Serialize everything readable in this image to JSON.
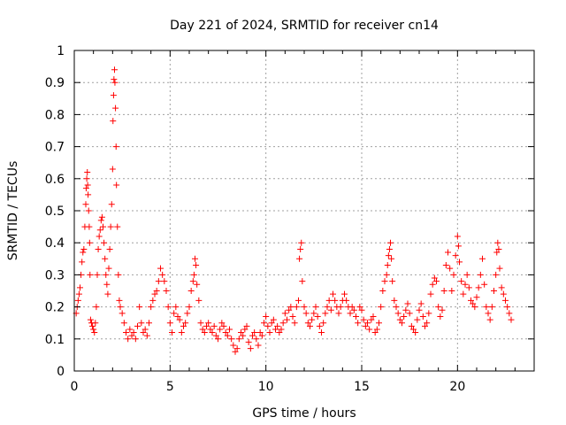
{
  "chart_data": {
    "type": "scatter",
    "title": "Day 221 of 2024, SRMTID for receiver cn14",
    "xlabel": "GPS time / hours",
    "ylabel": "SRMTID / TECUs",
    "xlim": [
      0,
      24
    ],
    "ylim": [
      0,
      1
    ],
    "xticks": [
      0,
      5,
      10,
      15,
      20
    ],
    "xtick_labels": [
      "0",
      "5",
      "10",
      "15",
      "20"
    ],
    "yticks": [
      0,
      0.1,
      0.2,
      0.3,
      0.4,
      0.5,
      0.6,
      0.7,
      0.8,
      0.9,
      1
    ],
    "ytick_labels": [
      "0",
      "0.1",
      "0.2",
      "0.3",
      "0.4",
      "0.5",
      "0.6",
      "0.7",
      "0.8",
      "0.9",
      "1"
    ],
    "grid": true,
    "marker": "+",
    "color": "#ff0000",
    "series": [
      {
        "name": "SRMTID",
        "points": [
          [
            0.1,
            0.18
          ],
          [
            0.15,
            0.2
          ],
          [
            0.2,
            0.22
          ],
          [
            0.25,
            0.24
          ],
          [
            0.3,
            0.26
          ],
          [
            0.35,
            0.3
          ],
          [
            0.4,
            0.34
          ],
          [
            0.45,
            0.37
          ],
          [
            0.5,
            0.38
          ],
          [
            0.55,
            0.45
          ],
          [
            0.6,
            0.52
          ],
          [
            0.62,
            0.57
          ],
          [
            0.65,
            0.6
          ],
          [
            0.68,
            0.62
          ],
          [
            0.7,
            0.58
          ],
          [
            0.72,
            0.55
          ],
          [
            0.75,
            0.5
          ],
          [
            0.78,
            0.45
          ],
          [
            0.8,
            0.4
          ],
          [
            0.82,
            0.3
          ],
          [
            0.85,
            0.16
          ],
          [
            0.9,
            0.15
          ],
          [
            0.95,
            0.14
          ],
          [
            1.0,
            0.13
          ],
          [
            1.05,
            0.12
          ],
          [
            1.1,
            0.15
          ],
          [
            1.15,
            0.2
          ],
          [
            1.2,
            0.3
          ],
          [
            1.25,
            0.38
          ],
          [
            1.3,
            0.42
          ],
          [
            1.35,
            0.44
          ],
          [
            1.4,
            0.47
          ],
          [
            1.45,
            0.48
          ],
          [
            1.5,
            0.45
          ],
          [
            1.55,
            0.4
          ],
          [
            1.6,
            0.35
          ],
          [
            1.65,
            0.3
          ],
          [
            1.7,
            0.27
          ],
          [
            1.75,
            0.24
          ],
          [
            1.8,
            0.32
          ],
          [
            1.85,
            0.38
          ],
          [
            1.9,
            0.45
          ],
          [
            1.95,
            0.52
          ],
          [
            2.0,
            0.63
          ],
          [
            2.02,
            0.78
          ],
          [
            2.05,
            0.86
          ],
          [
            2.07,
            0.91
          ],
          [
            2.1,
            0.94
          ],
          [
            2.12,
            0.9
          ],
          [
            2.15,
            0.82
          ],
          [
            2.18,
            0.7
          ],
          [
            2.2,
            0.58
          ],
          [
            2.25,
            0.45
          ],
          [
            2.3,
            0.3
          ],
          [
            2.35,
            0.22
          ],
          [
            2.4,
            0.2
          ],
          [
            2.5,
            0.18
          ],
          [
            2.6,
            0.15
          ],
          [
            2.7,
            0.12
          ],
          [
            2.8,
            0.1
          ],
          [
            2.9,
            0.13
          ],
          [
            3.0,
            0.11
          ],
          [
            3.1,
            0.12
          ],
          [
            3.2,
            0.1
          ],
          [
            3.3,
            0.14
          ],
          [
            3.4,
            0.2
          ],
          [
            3.5,
            0.15
          ],
          [
            3.6,
            0.12
          ],
          [
            3.7,
            0.13
          ],
          [
            3.8,
            0.11
          ],
          [
            3.9,
            0.15
          ],
          [
            4.0,
            0.2
          ],
          [
            4.1,
            0.22
          ],
          [
            4.2,
            0.24
          ],
          [
            4.3,
            0.25
          ],
          [
            4.4,
            0.28
          ],
          [
            4.5,
            0.32
          ],
          [
            4.6,
            0.3
          ],
          [
            4.7,
            0.28
          ],
          [
            4.8,
            0.25
          ],
          [
            4.9,
            0.2
          ],
          [
            5.0,
            0.15
          ],
          [
            5.1,
            0.12
          ],
          [
            5.2,
            0.18
          ],
          [
            5.3,
            0.2
          ],
          [
            5.4,
            0.17
          ],
          [
            5.5,
            0.16
          ],
          [
            5.6,
            0.12
          ],
          [
            5.7,
            0.14
          ],
          [
            5.8,
            0.15
          ],
          [
            5.9,
            0.18
          ],
          [
            6.0,
            0.2
          ],
          [
            6.1,
            0.25
          ],
          [
            6.2,
            0.28
          ],
          [
            6.25,
            0.3
          ],
          [
            6.3,
            0.35
          ],
          [
            6.35,
            0.33
          ],
          [
            6.4,
            0.27
          ],
          [
            6.5,
            0.22
          ],
          [
            6.6,
            0.15
          ],
          [
            6.7,
            0.13
          ],
          [
            6.8,
            0.12
          ],
          [
            6.9,
            0.14
          ],
          [
            7.0,
            0.15
          ],
          [
            7.1,
            0.13
          ],
          [
            7.2,
            0.12
          ],
          [
            7.3,
            0.14
          ],
          [
            7.4,
            0.11
          ],
          [
            7.5,
            0.1
          ],
          [
            7.6,
            0.13
          ],
          [
            7.7,
            0.15
          ],
          [
            7.8,
            0.14
          ],
          [
            7.9,
            0.12
          ],
          [
            8.0,
            0.11
          ],
          [
            8.1,
            0.13
          ],
          [
            8.2,
            0.1
          ],
          [
            8.3,
            0.08
          ],
          [
            8.4,
            0.06
          ],
          [
            8.5,
            0.07
          ],
          [
            8.6,
            0.1
          ],
          [
            8.7,
            0.12
          ],
          [
            8.8,
            0.11
          ],
          [
            8.9,
            0.13
          ],
          [
            9.0,
            0.14
          ],
          [
            9.1,
            0.09
          ],
          [
            9.2,
            0.07
          ],
          [
            9.3,
            0.11
          ],
          [
            9.4,
            0.12
          ],
          [
            9.5,
            0.1
          ],
          [
            9.6,
            0.08
          ],
          [
            9.7,
            0.12
          ],
          [
            9.8,
            0.11
          ],
          [
            9.9,
            0.15
          ],
          [
            10.0,
            0.17
          ],
          [
            10.1,
            0.14
          ],
          [
            10.2,
            0.12
          ],
          [
            10.3,
            0.15
          ],
          [
            10.4,
            0.16
          ],
          [
            10.5,
            0.13
          ],
          [
            10.6,
            0.14
          ],
          [
            10.7,
            0.12
          ],
          [
            10.8,
            0.13
          ],
          [
            10.9,
            0.15
          ],
          [
            11.0,
            0.18
          ],
          [
            11.1,
            0.16
          ],
          [
            11.2,
            0.19
          ],
          [
            11.3,
            0.2
          ],
          [
            11.4,
            0.17
          ],
          [
            11.5,
            0.15
          ],
          [
            11.6,
            0.2
          ],
          [
            11.7,
            0.22
          ],
          [
            11.75,
            0.35
          ],
          [
            11.8,
            0.38
          ],
          [
            11.85,
            0.4
          ],
          [
            11.9,
            0.28
          ],
          [
            12.0,
            0.2
          ],
          [
            12.1,
            0.18
          ],
          [
            12.2,
            0.15
          ],
          [
            12.3,
            0.14
          ],
          [
            12.4,
            0.16
          ],
          [
            12.5,
            0.18
          ],
          [
            12.6,
            0.2
          ],
          [
            12.7,
            0.17
          ],
          [
            12.8,
            0.14
          ],
          [
            12.9,
            0.12
          ],
          [
            13.0,
            0.15
          ],
          [
            13.1,
            0.18
          ],
          [
            13.2,
            0.2
          ],
          [
            13.3,
            0.22
          ],
          [
            13.4,
            0.19
          ],
          [
            13.5,
            0.24
          ],
          [
            13.6,
            0.22
          ],
          [
            13.7,
            0.2
          ],
          [
            13.8,
            0.18
          ],
          [
            13.9,
            0.2
          ],
          [
            14.0,
            0.22
          ],
          [
            14.1,
            0.24
          ],
          [
            14.2,
            0.22
          ],
          [
            14.3,
            0.2
          ],
          [
            14.4,
            0.18
          ],
          [
            14.5,
            0.2
          ],
          [
            14.6,
            0.19
          ],
          [
            14.7,
            0.17
          ],
          [
            14.8,
            0.15
          ],
          [
            14.9,
            0.2
          ],
          [
            15.0,
            0.19
          ],
          [
            15.1,
            0.16
          ],
          [
            15.2,
            0.14
          ],
          [
            15.3,
            0.15
          ],
          [
            15.4,
            0.13
          ],
          [
            15.5,
            0.16
          ],
          [
            15.6,
            0.17
          ],
          [
            15.7,
            0.12
          ],
          [
            15.8,
            0.13
          ],
          [
            15.9,
            0.15
          ],
          [
            16.0,
            0.2
          ],
          [
            16.1,
            0.25
          ],
          [
            16.2,
            0.28
          ],
          [
            16.3,
            0.3
          ],
          [
            16.35,
            0.33
          ],
          [
            16.4,
            0.36
          ],
          [
            16.45,
            0.38
          ],
          [
            16.5,
            0.4
          ],
          [
            16.55,
            0.35
          ],
          [
            16.6,
            0.28
          ],
          [
            16.7,
            0.22
          ],
          [
            16.8,
            0.2
          ],
          [
            16.9,
            0.18
          ],
          [
            17.0,
            0.16
          ],
          [
            17.1,
            0.15
          ],
          [
            17.2,
            0.17
          ],
          [
            17.3,
            0.19
          ],
          [
            17.4,
            0.21
          ],
          [
            17.5,
            0.18
          ],
          [
            17.6,
            0.14
          ],
          [
            17.7,
            0.13
          ],
          [
            17.8,
            0.12
          ],
          [
            17.9,
            0.16
          ],
          [
            18.0,
            0.19
          ],
          [
            18.1,
            0.21
          ],
          [
            18.2,
            0.17
          ],
          [
            18.3,
            0.14
          ],
          [
            18.4,
            0.15
          ],
          [
            18.5,
            0.18
          ],
          [
            18.6,
            0.24
          ],
          [
            18.7,
            0.27
          ],
          [
            18.8,
            0.29
          ],
          [
            18.9,
            0.28
          ],
          [
            19.0,
            0.2
          ],
          [
            19.1,
            0.17
          ],
          [
            19.2,
            0.19
          ],
          [
            19.3,
            0.25
          ],
          [
            19.4,
            0.33
          ],
          [
            19.5,
            0.37
          ],
          [
            19.6,
            0.32
          ],
          [
            19.7,
            0.25
          ],
          [
            19.8,
            0.3
          ],
          [
            19.9,
            0.36
          ],
          [
            20.0,
            0.42
          ],
          [
            20.05,
            0.39
          ],
          [
            20.1,
            0.34
          ],
          [
            20.2,
            0.28
          ],
          [
            20.3,
            0.24
          ],
          [
            20.4,
            0.27
          ],
          [
            20.5,
            0.3
          ],
          [
            20.6,
            0.26
          ],
          [
            20.7,
            0.22
          ],
          [
            20.8,
            0.21
          ],
          [
            20.9,
            0.2
          ],
          [
            21.0,
            0.23
          ],
          [
            21.1,
            0.26
          ],
          [
            21.2,
            0.3
          ],
          [
            21.3,
            0.35
          ],
          [
            21.4,
            0.27
          ],
          [
            21.5,
            0.2
          ],
          [
            21.6,
            0.18
          ],
          [
            21.7,
            0.16
          ],
          [
            21.8,
            0.2
          ],
          [
            21.9,
            0.25
          ],
          [
            22.0,
            0.3
          ],
          [
            22.05,
            0.37
          ],
          [
            22.1,
            0.4
          ],
          [
            22.15,
            0.38
          ],
          [
            22.2,
            0.32
          ],
          [
            22.3,
            0.26
          ],
          [
            22.4,
            0.24
          ],
          [
            22.5,
            0.22
          ],
          [
            22.6,
            0.2
          ],
          [
            22.7,
            0.18
          ],
          [
            22.8,
            0.16
          ]
        ]
      }
    ]
  }
}
